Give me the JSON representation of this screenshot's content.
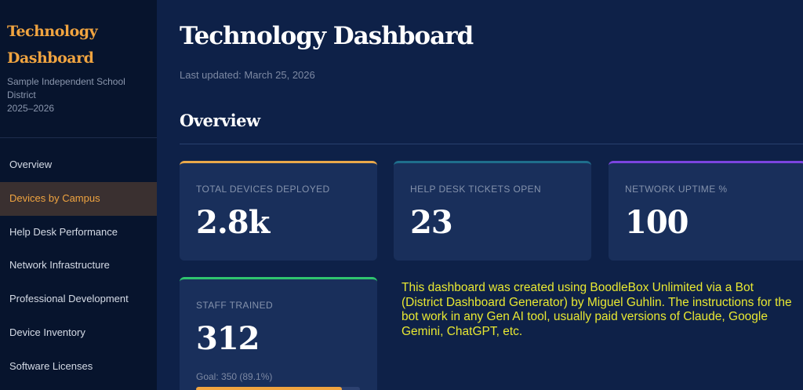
{
  "sidebar": {
    "brand_line1": "Technology",
    "brand_line2": "Dashboard",
    "district_name": "Sample Independent School District",
    "school_year": "2025–2026",
    "nav_items": [
      {
        "label": "Overview",
        "active": false
      },
      {
        "label": "Devices by Campus",
        "active": true
      },
      {
        "label": "Help Desk Performance",
        "active": false
      },
      {
        "label": "Network Infrastructure",
        "active": false
      },
      {
        "label": "Professional Development",
        "active": false
      },
      {
        "label": "Device Inventory",
        "active": false
      },
      {
        "label": "Software Licenses",
        "active": false
      }
    ]
  },
  "main": {
    "title": "Technology Dashboard",
    "last_updated": "Last updated: March 25, 2026",
    "section_title": "Overview",
    "cards": [
      {
        "label": "TOTAL DEVICES DEPLOYED",
        "value": "2.8k",
        "accent": "#e9a84a"
      },
      {
        "label": "HELP DESK TICKETS OPEN",
        "value": "23",
        "accent": "#1f6e8c"
      },
      {
        "label": "NETWORK UPTIME %",
        "value": "100",
        "accent": "#7b44e0"
      },
      {
        "label": "STAFF TRAINED",
        "value": "312",
        "accent": "#2fc46e",
        "sub": "Goal: 350 (89.1%)",
        "progress": 0.891
      }
    ],
    "note": "This dashboard was created using BoodleBox Unlimited via a Bot (District Dashboard Generator) by Miguel Guhlin. The instructions for the bot work in any Gen AI tool, usually paid versions of Claude, Google Gemini, ChatGPT, etc."
  },
  "colors": {
    "background": "#0e2148",
    "sidebar": "#07142d",
    "brand_accent": "#f0a440",
    "card": "#192f5b",
    "note_text": "#e8e832"
  }
}
